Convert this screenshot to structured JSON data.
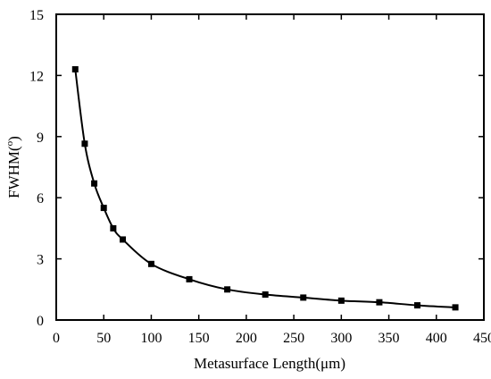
{
  "chart_data": {
    "type": "line",
    "title": "",
    "xlabel": "Metasurface Length(μm)",
    "ylabel": "FWHM(°)",
    "ylabel_parts": {
      "main": "FWHM(",
      "sup": "o",
      "close": ")"
    },
    "xlim": [
      0,
      450
    ],
    "ylim": [
      0,
      15
    ],
    "x_ticks": [
      0,
      50,
      100,
      150,
      200,
      250,
      300,
      350,
      400,
      450
    ],
    "y_ticks": [
      0,
      3,
      6,
      9,
      12,
      15
    ],
    "grid": false,
    "legend": "none",
    "marker": "square",
    "line_color": "#000000",
    "series": [
      {
        "x": [
          20,
          30,
          40,
          50,
          60,
          70,
          100,
          140,
          180,
          220,
          260,
          300,
          340,
          380,
          420
        ],
        "y": [
          12.3,
          8.65,
          6.7,
          5.5,
          4.5,
          3.95,
          2.75,
          2.0,
          1.5,
          1.25,
          1.1,
          0.95,
          0.87,
          0.72,
          0.62
        ]
      }
    ]
  }
}
